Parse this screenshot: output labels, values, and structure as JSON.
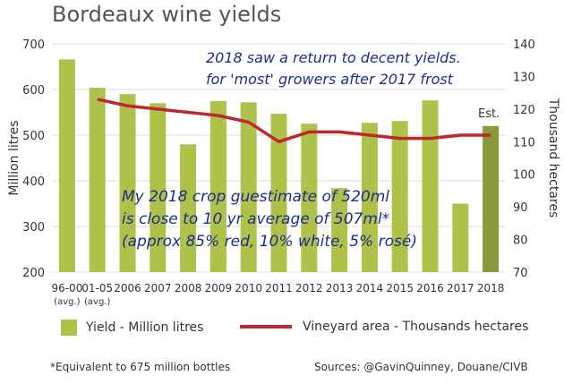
{
  "title": "Bordeaux wine yields",
  "chart_data": {
    "type": "bar",
    "categories": [
      [
        "96-00",
        "(avg.)"
      ],
      [
        "01-05",
        "(avg.)"
      ],
      [
        "2006"
      ],
      [
        "2007"
      ],
      [
        "2008"
      ],
      [
        "2009"
      ],
      [
        "2010"
      ],
      [
        "2011"
      ],
      [
        "2012"
      ],
      [
        "2013"
      ],
      [
        "2014"
      ],
      [
        "2015"
      ],
      [
        "2016"
      ],
      [
        "2017"
      ],
      [
        "2018"
      ]
    ],
    "series": [
      {
        "name": "Yield - Million litres",
        "type": "bar",
        "axis": "left",
        "values": [
          666,
          604,
          590,
          570,
          480,
          575,
          572,
          547,
          525,
          384,
          527,
          531,
          576,
          350,
          520
        ]
      },
      {
        "name": "Vineyard area - Thousands hectares",
        "type": "line",
        "axis": "right",
        "values": [
          null,
          123,
          121,
          120,
          119,
          118,
          116,
          110,
          113,
          113,
          112,
          111,
          111,
          112,
          112
        ]
      }
    ],
    "ylabel": "Million litres",
    "ylabel_right": "Thousand hectares",
    "ylim": [
      200,
      700
    ],
    "yticks": [
      200,
      300,
      400,
      500,
      600,
      700
    ],
    "ylim_right": [
      70,
      140
    ],
    "yticks_right": [
      70,
      80,
      90,
      100,
      110,
      120,
      130,
      140
    ],
    "grid": "horizontal",
    "legend_position": "bottom",
    "estimate_label": "Est.",
    "colors": {
      "bar": "#aec24a",
      "bar_estimate": "#8a9a3a",
      "line": "#c0272d",
      "grid": "#dcdcdc",
      "annotation": "#1b2f8c"
    },
    "annotations": [
      [
        "2018 saw a return to decent yields.",
        "for 'most' growers after 2017 frost"
      ],
      [
        "My 2018 crop guestimate of 520ml",
        "is close to 10 yr average of 507ml*",
        "(approx 85% red, 10% white, 5% rosé)"
      ]
    ]
  },
  "legend": {
    "bar_label": "Yield - Million litres",
    "line_label": "Vineyard area - Thousands hectares"
  },
  "footnote": "*Equivalent to 675 million bottles",
  "sources": "Sources: @GavinQuinney, Douane/CIVB"
}
